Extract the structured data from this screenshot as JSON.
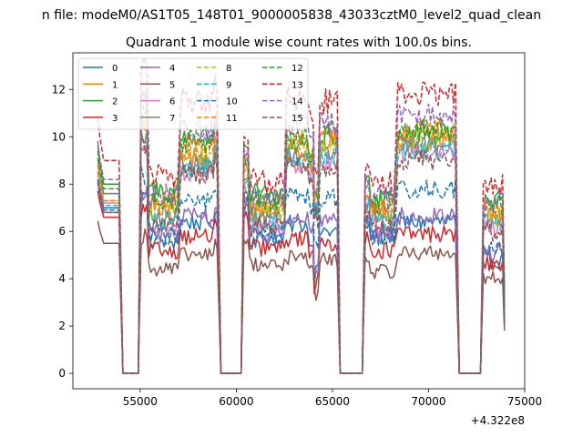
{
  "chart_data": {
    "type": "line",
    "suptitle": "n file: modeM0/AS1T05_148T01_9000005838_43033cztM0_level2_quad_clean",
    "title": "Quadrant 1 module wise count rates with 100.0s bins.",
    "xlabel": "",
    "ylabel": "",
    "x_offset_label": "+4.322e8",
    "xlim": [
      51500,
      75000
    ],
    "ylim": [
      -0.65,
      13.55
    ],
    "xticks": [
      55000,
      60000,
      65000,
      70000,
      75000
    ],
    "xtick_labels": [
      "55000",
      "60000",
      "65000",
      "70000",
      "75000"
    ],
    "yticks": [
      0,
      2,
      4,
      6,
      8,
      10,
      12
    ],
    "ytick_labels": [
      "0",
      "2",
      "4",
      "6",
      "8",
      "10",
      "12"
    ],
    "legend_position": "upper-left",
    "legend_ncol": 4,
    "segments": [
      [
        52800,
        53950,
        "A"
      ],
      [
        55050,
        56950,
        "B"
      ],
      [
        57100,
        59050,
        "C"
      ],
      [
        60400,
        62550,
        "D"
      ],
      [
        62600,
        64000,
        "E"
      ],
      [
        64050,
        65250,
        "F"
      ],
      [
        66700,
        68250,
        "G"
      ],
      [
        68400,
        71450,
        "H"
      ],
      [
        72850,
        73900,
        "I"
      ]
    ],
    "gaps": [
      [
        53950,
        55050
      ],
      [
        59050,
        60400
      ],
      [
        65250,
        66700
      ],
      [
        71450,
        72850
      ]
    ],
    "series": [
      {
        "name": "0",
        "color": "#1f77b4",
        "dash": "solid",
        "levels": {
          "A": 7.0,
          "B": 5.6,
          "C": 6.4,
          "D": 5.7,
          "E": 6.3,
          "F": 6.0,
          "G": 5.8,
          "H": 6.4,
          "I": 4.8
        }
      },
      {
        "name": "1",
        "color": "#ff7f0e",
        "dash": "solid",
        "levels": {
          "A": 7.6,
          "B": 7.1,
          "C": 9.1,
          "D": 7.0,
          "E": 9.4,
          "F": 9.8,
          "G": 6.9,
          "H": 9.9,
          "I": 6.8
        }
      },
      {
        "name": "2",
        "color": "#2ca02c",
        "dash": "solid",
        "levels": {
          "A": 8.0,
          "B": 7.7,
          "C": 10.0,
          "D": 7.5,
          "E": 9.8,
          "F": 10.0,
          "G": 7.5,
          "H": 10.2,
          "I": 7.2
        }
      },
      {
        "name": "3",
        "color": "#d62728",
        "dash": "solid",
        "levels": {
          "A": 6.6,
          "B": 5.2,
          "C": 5.8,
          "D": 5.3,
          "E": 5.7,
          "F": 5.5,
          "G": 5.2,
          "H": 5.9,
          "I": 4.6
        }
      },
      {
        "name": "4",
        "color": "#9467bd",
        "dash": "solid",
        "levels": {
          "A": 6.8,
          "B": 5.9,
          "C": 6.6,
          "D": 5.9,
          "E": 6.5,
          "F": 6.4,
          "G": 5.9,
          "H": 6.6,
          "I": 5.1
        }
      },
      {
        "name": "5",
        "color": "#8c564b",
        "dash": "solid",
        "levels": {
          "A": 5.5,
          "B": 4.4,
          "C": 5.0,
          "D": 4.6,
          "E": 4.9,
          "F": 4.8,
          "G": 4.3,
          "H": 5.1,
          "I": 4.0
        }
      },
      {
        "name": "6",
        "color": "#e377c2",
        "dash": "solid",
        "levels": {
          "A": 7.2,
          "B": 6.2,
          "C": 8.5,
          "D": 6.3,
          "E": 8.9,
          "F": 9.0,
          "G": 6.2,
          "H": 9.3,
          "I": 6.1
        }
      },
      {
        "name": "7",
        "color": "#7f7f7f",
        "dash": "solid",
        "levels": {
          "A": 7.6,
          "B": 6.7,
          "C": 8.8,
          "D": 6.6,
          "E": 9.2,
          "F": 9.4,
          "G": 6.6,
          "H": 9.6,
          "I": 6.5
        }
      },
      {
        "name": "8",
        "color": "#bcbd22",
        "dash": "dashed",
        "levels": {
          "A": 7.3,
          "B": 6.9,
          "C": 9.2,
          "D": 6.8,
          "E": 9.6,
          "F": 9.6,
          "G": 6.8,
          "H": 9.9,
          "I": 6.6
        }
      },
      {
        "name": "9",
        "color": "#17becf",
        "dash": "dashed",
        "levels": {
          "A": 7.1,
          "B": 6.5,
          "C": 8.7,
          "D": 6.4,
          "E": 9.1,
          "F": 9.2,
          "G": 6.4,
          "H": 9.4,
          "I": 6.3
        }
      },
      {
        "name": "10",
        "color": "#1f77b4",
        "dash": "dashed",
        "levels": {
          "A": 6.9,
          "B": 5.8,
          "C": 7.3,
          "D": 5.9,
          "E": 7.5,
          "F": 7.4,
          "G": 5.8,
          "H": 7.8,
          "I": 5.2
        }
      },
      {
        "name": "11",
        "color": "#ff7f0e",
        "dash": "dashed",
        "levels": {
          "A": 7.3,
          "B": 7.2,
          "C": 9.6,
          "D": 7.1,
          "E": 9.9,
          "F": 10.1,
          "G": 7.0,
          "H": 10.3,
          "I": 6.9
        }
      },
      {
        "name": "12",
        "color": "#2ca02c",
        "dash": "dashed",
        "levels": {
          "A": 7.8,
          "B": 7.4,
          "C": 9.8,
          "D": 7.3,
          "E": 10.0,
          "F": 10.3,
          "G": 7.3,
          "H": 10.4,
          "I": 7.0
        }
      },
      {
        "name": "13",
        "color": "#d62728",
        "dash": "dashed",
        "levels": {
          "A": 9.0,
          "B": 8.3,
          "C": 11.5,
          "D": 8.1,
          "E": 11.6,
          "F": 11.5,
          "G": 8.0,
          "H": 11.8,
          "I": 7.9
        }
      },
      {
        "name": "14",
        "color": "#9467bd",
        "dash": "dashed",
        "levels": {
          "A": 8.2,
          "B": 7.5,
          "C": 10.3,
          "D": 7.5,
          "E": 10.6,
          "F": 10.6,
          "G": 7.4,
          "H": 10.9,
          "I": 7.3
        }
      },
      {
        "name": "15",
        "color": "#8c564b",
        "dash": "dashed",
        "levels": {
          "A": 6.8,
          "B": 6.3,
          "C": 8.4,
          "D": 6.2,
          "E": 8.7,
          "F": 8.7,
          "G": 6.2,
          "H": 9.0,
          "I": 6.0
        }
      }
    ]
  }
}
